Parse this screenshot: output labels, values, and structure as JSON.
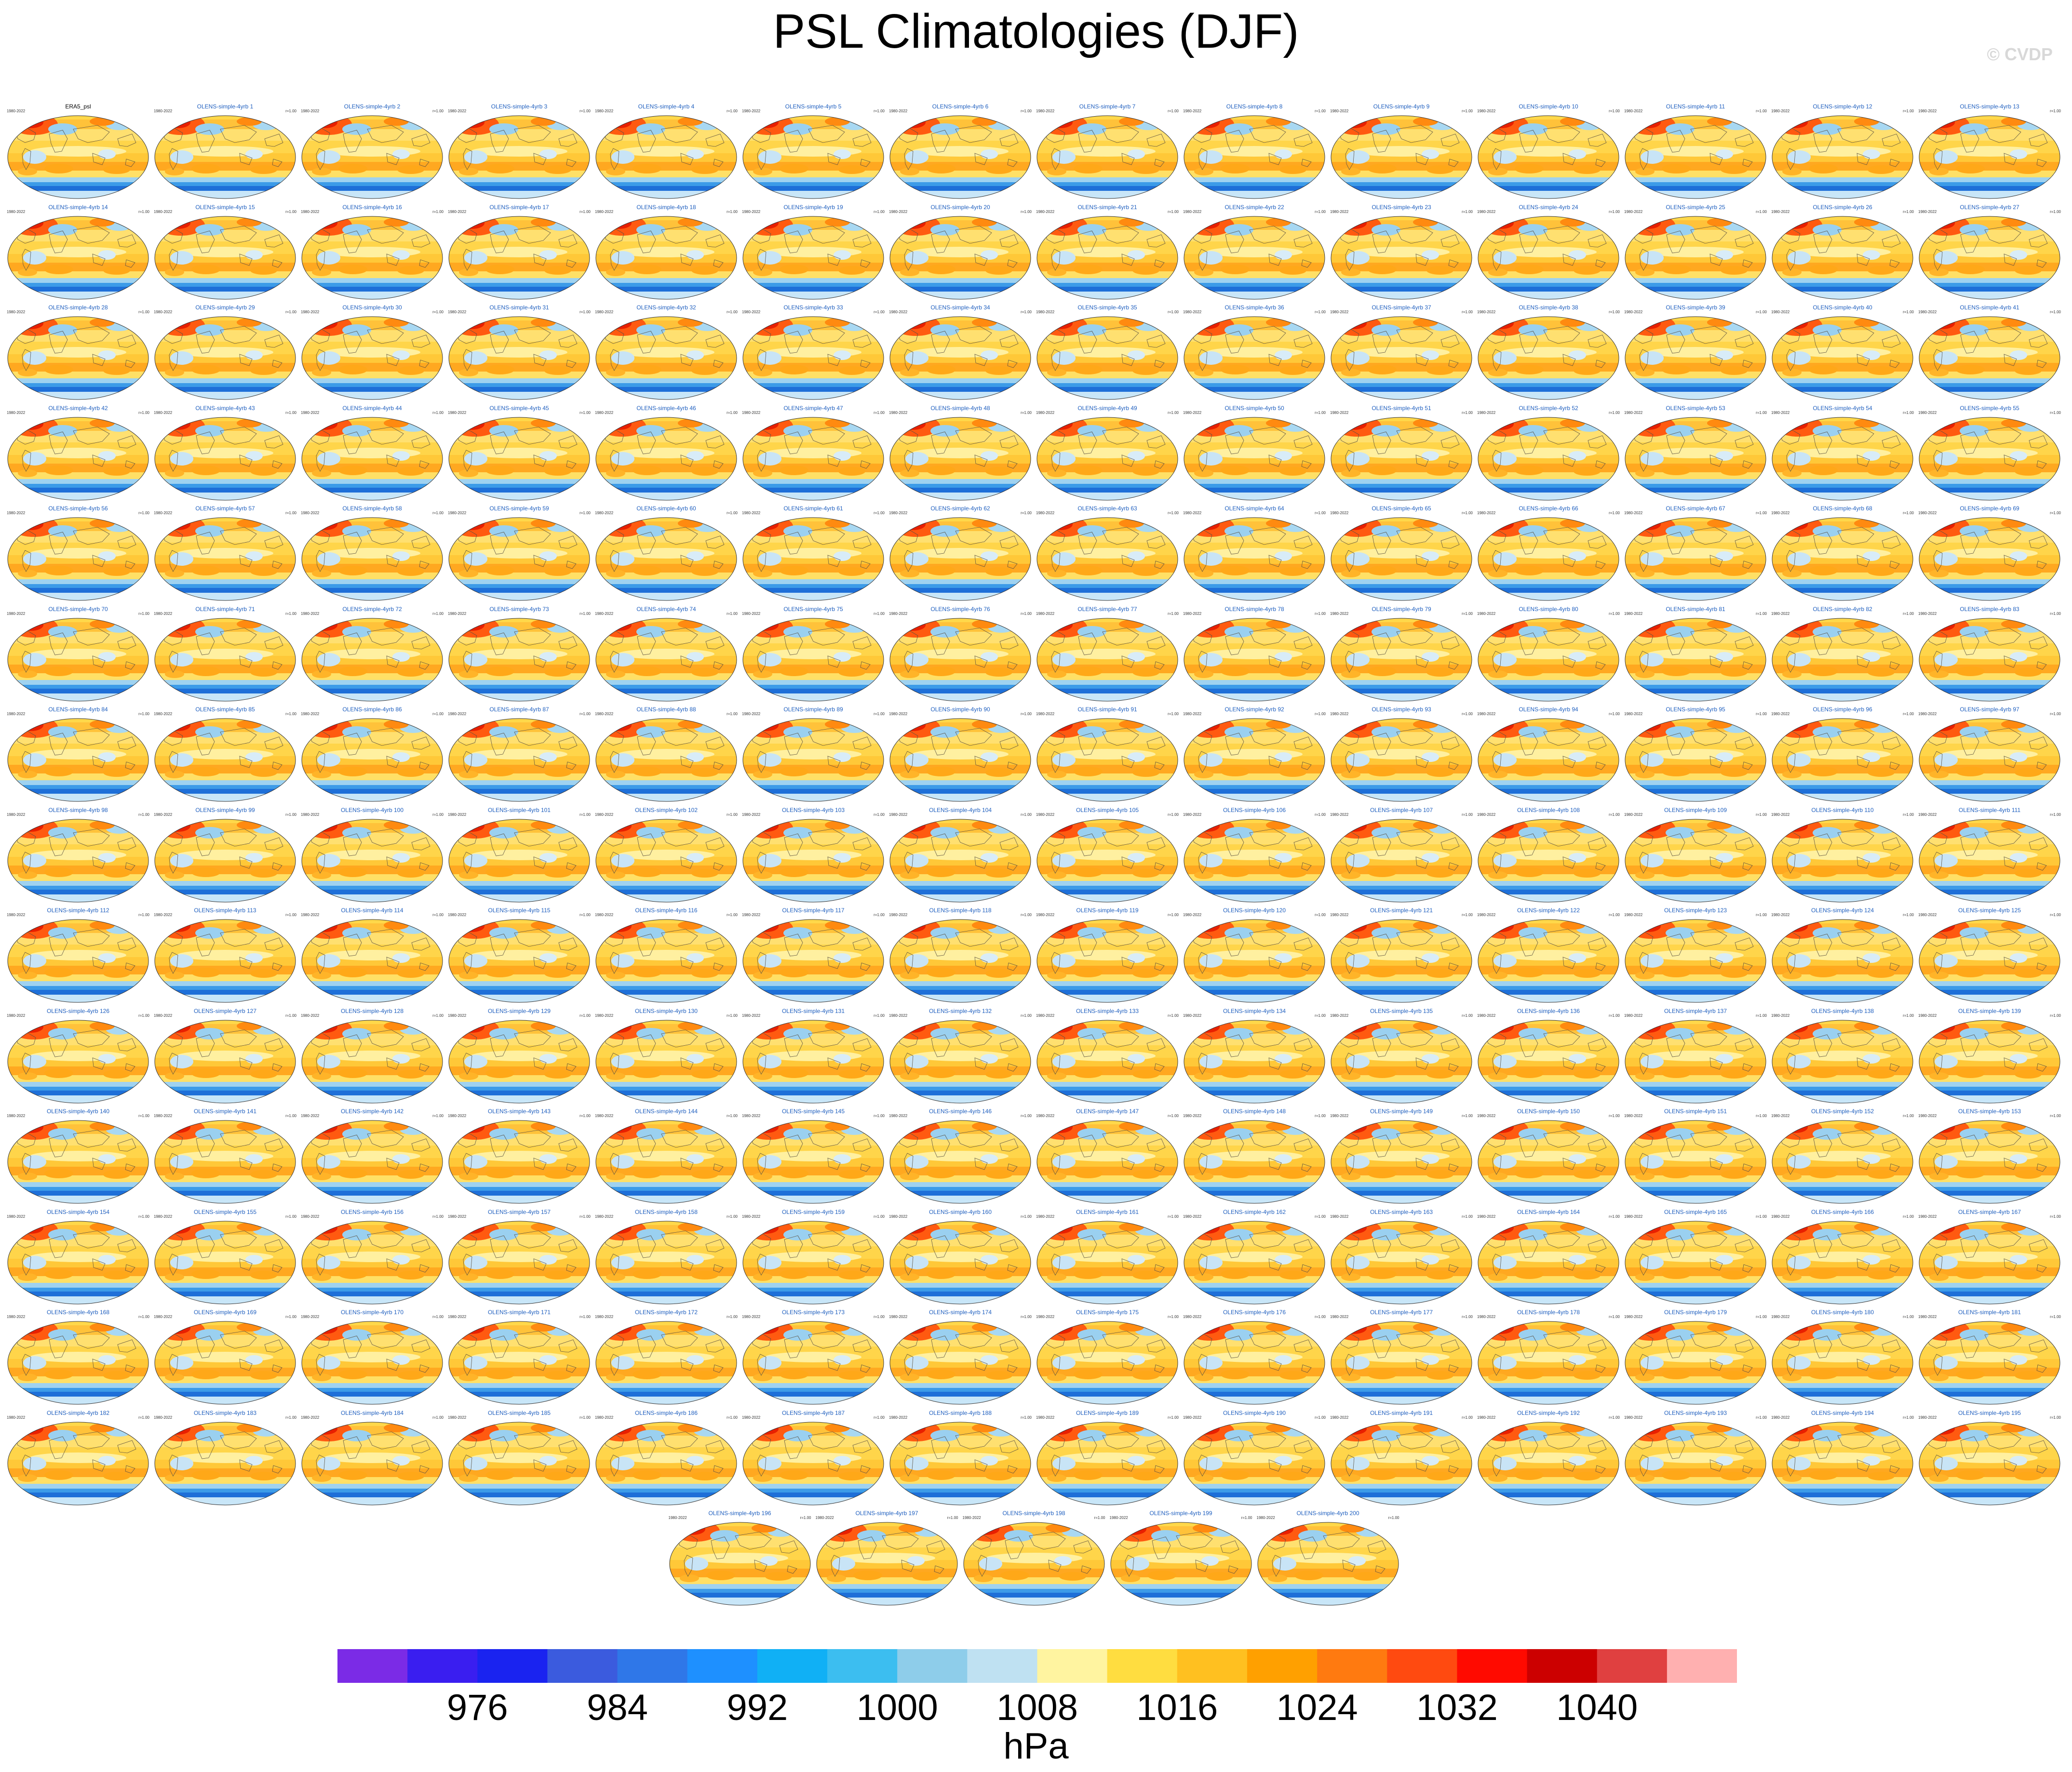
{
  "figure": {
    "title": "PSL Climatologies (DJF)",
    "watermark": "© CVDP",
    "period": "1980-2022",
    "rvalue": "r=1.00"
  },
  "chart_data": {
    "type": "heatmap",
    "title": "PSL Climatologies (DJF)",
    "panels": {
      "observation": "ERA5_psl",
      "ensemble_prefix": "OLENS-simple-4yrb",
      "ensemble_first": 1,
      "ensemble_last": 200,
      "columns": 14,
      "rows": 15
    },
    "colorbar": {
      "units": "hPa",
      "levels": [
        972,
        976,
        980,
        984,
        988,
        992,
        996,
        1000,
        1004,
        1008,
        1012,
        1016,
        1020,
        1024,
        1028,
        1032,
        1036,
        1040,
        1044
      ],
      "tick_labels": [
        "976",
        "984",
        "992",
        "1000",
        "1008",
        "1016",
        "1024",
        "1032",
        "1040"
      ],
      "colors": [
        "#7b2be6",
        "#3a1ef0",
        "#1a23f0",
        "#3b5bde",
        "#2f77e8",
        "#1e90ff",
        "#10b0f5",
        "#3cbef0",
        "#8ecdea",
        "#bfe1f2",
        "#fff4a0",
        "#ffdd40",
        "#ffc020",
        "#ffa000",
        "#ff7a10",
        "#ff4a10",
        "#ff0a00",
        "#cc0000",
        "#e04040",
        "#ffb0b0"
      ]
    }
  }
}
